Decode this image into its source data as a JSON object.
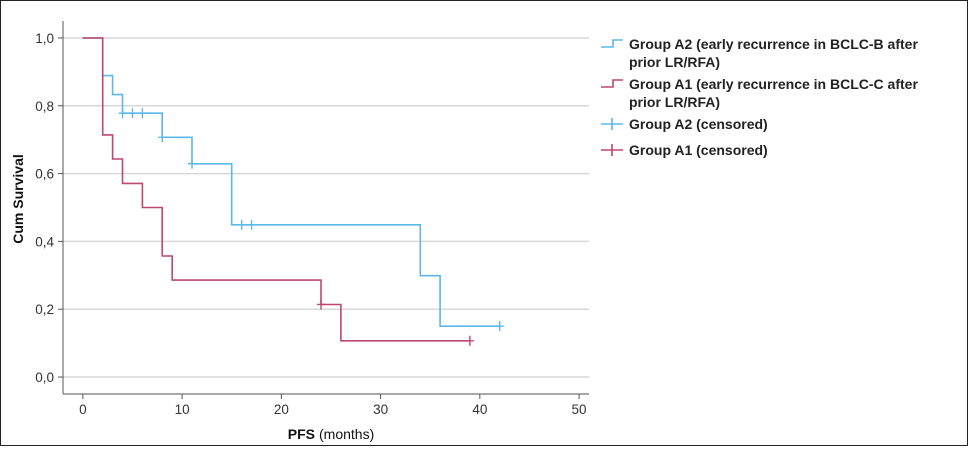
{
  "chart_data": {
    "type": "line",
    "step": true,
    "xlabel_bold": "PFS",
    "xlabel_rest": "(months)",
    "ylabel": "Cum Survival",
    "xlim": [
      -2,
      51
    ],
    "ylim": [
      -0.05,
      1.05
    ],
    "x_ticks": [
      0,
      10,
      20,
      30,
      40,
      50
    ],
    "x_tick_labels": [
      "0",
      "10",
      "20",
      "30",
      "40",
      "50"
    ],
    "y_ticks": [
      0.0,
      0.2,
      0.4,
      0.6,
      0.8,
      1.0
    ],
    "y_tick_labels": [
      "0,0",
      "0,2",
      "0,4",
      "0,6",
      "0,8",
      "1,0"
    ],
    "grid": "horizontal",
    "legend_position": "right",
    "series": [
      {
        "name": "Group A2 (early recurrence in BCLC-B after prior LR/RFA)",
        "color": "#5bb8e8",
        "steps": [
          [
            0,
            1.0
          ],
          [
            2,
            1.0
          ],
          [
            2,
            0.889
          ],
          [
            3,
            0.889
          ],
          [
            3,
            0.833
          ],
          [
            4,
            0.833
          ],
          [
            4,
            0.778
          ],
          [
            8,
            0.778
          ],
          [
            8,
            0.707
          ],
          [
            11,
            0.707
          ],
          [
            11,
            0.629
          ],
          [
            15,
            0.629
          ],
          [
            15,
            0.449
          ],
          [
            34,
            0.449
          ],
          [
            34,
            0.299
          ],
          [
            36,
            0.299
          ],
          [
            36,
            0.15
          ],
          [
            42,
            0.15
          ]
        ],
        "censored": [
          [
            4,
            0.778
          ],
          [
            5,
            0.778
          ],
          [
            6,
            0.778
          ],
          [
            8,
            0.707
          ],
          [
            11,
            0.629
          ],
          [
            16,
            0.449
          ],
          [
            17,
            0.449
          ],
          [
            42,
            0.15
          ]
        ]
      },
      {
        "name": "Group A1 (early recurrence in BCLC-C after prior LR/RFA)",
        "color": "#c0476d",
        "steps": [
          [
            0,
            1.0
          ],
          [
            2,
            1.0
          ],
          [
            2,
            0.714
          ],
          [
            3,
            0.714
          ],
          [
            3,
            0.643
          ],
          [
            4,
            0.643
          ],
          [
            4,
            0.571
          ],
          [
            6,
            0.571
          ],
          [
            6,
            0.5
          ],
          [
            8,
            0.5
          ],
          [
            8,
            0.357
          ],
          [
            9,
            0.357
          ],
          [
            9,
            0.286
          ],
          [
            24,
            0.286
          ],
          [
            24,
            0.214
          ],
          [
            26,
            0.214
          ],
          [
            26,
            0.107
          ],
          [
            39,
            0.107
          ]
        ],
        "censored": [
          [
            24,
            0.214
          ],
          [
            39,
            0.107
          ]
        ]
      }
    ],
    "legend": [
      {
        "label_line1": "Group A2 (early recurrence in BCLC-B after",
        "label_line2": "prior LR/RFA)",
        "kind": "line",
        "color": "#5bb8e8"
      },
      {
        "label_line1": "Group A1 (early recurrence in BCLC-C after",
        "label_line2": "prior LR/RFA)",
        "kind": "line",
        "color": "#c0476d"
      },
      {
        "label_line1": "Group A2 (censored)",
        "label_line2": "",
        "kind": "censor",
        "color": "#5bb8e8"
      },
      {
        "label_line1": "Group A1 (censored)",
        "label_line2": "",
        "kind": "censor",
        "color": "#c0476d"
      }
    ]
  }
}
